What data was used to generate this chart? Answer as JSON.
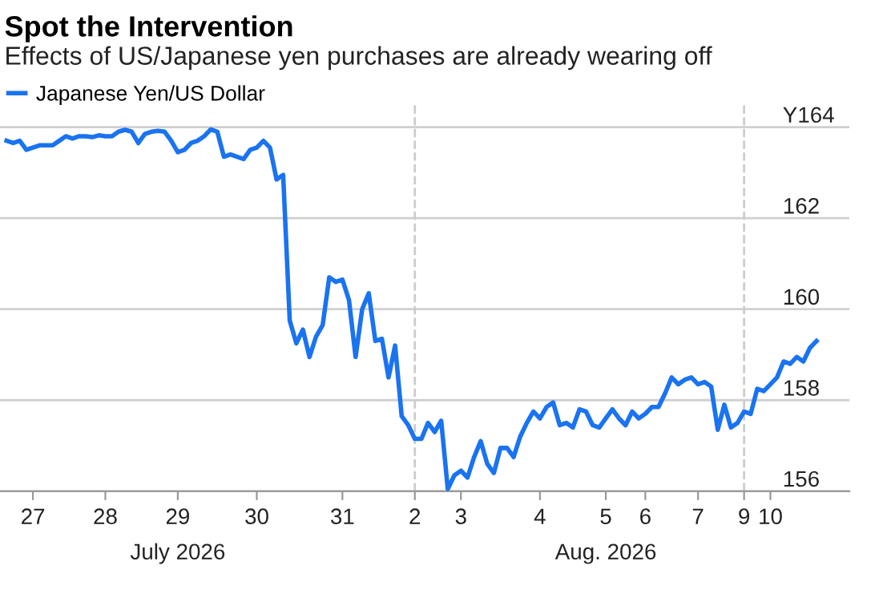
{
  "chart_data": {
    "type": "line",
    "title": "Spot the Intervention",
    "subtitle": "Effects of US/Japanese yen purchases are already wearing off",
    "categories": [
      null,
      null,
      null,
      null,
      "27",
      null,
      null,
      null,
      null,
      null,
      null,
      null,
      null,
      null,
      null,
      "28",
      null,
      null,
      null,
      null,
      null,
      null,
      null,
      null,
      null,
      null,
      "29\nJuly 2026",
      null,
      null,
      null,
      null,
      null,
      null,
      null,
      null,
      null,
      null,
      null,
      "30",
      null,
      null,
      null,
      null,
      null,
      null,
      null,
      null,
      null,
      null,
      null,
      null,
      "31",
      null,
      null,
      null,
      null,
      null,
      null,
      null,
      null,
      null,
      null,
      "2",
      null,
      null,
      null,
      null,
      null,
      null,
      "3",
      null,
      null,
      null,
      null,
      null,
      null,
      null,
      null,
      null,
      null,
      null,
      "4",
      null,
      null,
      null,
      null,
      null,
      null,
      null,
      null,
      null,
      "5\nAug. 2026",
      null,
      null,
      null,
      null,
      null,
      "6",
      null,
      null,
      null,
      null,
      null,
      null,
      null,
      "7",
      null,
      null,
      null,
      null,
      null,
      null,
      "9",
      null,
      null,
      null,
      "10",
      null,
      null,
      null,
      null,
      null,
      null,
      null
    ],
    "series": [
      {
        "name": "Japanese Yen/US Dollar",
        "color": "#1a73f0",
        "values": [
          163.7,
          163.65,
          163.7,
          163.5,
          163.55,
          163.6,
          163.6,
          163.6,
          163.7,
          163.8,
          163.75,
          163.8,
          163.8,
          163.78,
          163.82,
          163.8,
          163.8,
          163.9,
          163.94,
          163.9,
          163.65,
          163.85,
          163.9,
          163.92,
          163.9,
          163.7,
          163.45,
          163.5,
          163.65,
          163.7,
          163.8,
          163.95,
          163.9,
          163.35,
          163.4,
          163.35,
          163.3,
          163.5,
          163.55,
          163.7,
          163.55,
          162.85,
          162.95,
          159.75,
          159.25,
          159.55,
          158.95,
          159.4,
          159.65,
          160.7,
          160.6,
          160.65,
          160.2,
          158.95,
          160.0,
          160.35,
          159.3,
          159.35,
          158.5,
          159.2,
          157.65,
          157.45,
          157.15,
          157.15,
          157.5,
          157.3,
          157.55,
          156.05,
          156.35,
          156.45,
          156.3,
          156.75,
          157.1,
          156.6,
          156.4,
          156.95,
          156.95,
          156.75,
          157.2,
          157.5,
          157.75,
          157.6,
          157.85,
          157.95,
          157.45,
          157.5,
          157.4,
          157.8,
          157.75,
          157.45,
          157.4,
          157.6,
          157.8,
          157.6,
          157.45,
          157.75,
          157.6,
          157.7,
          157.85,
          157.85,
          158.15,
          158.5,
          158.35,
          158.45,
          158.5,
          158.35,
          158.4,
          158.3,
          157.35,
          157.9,
          157.4,
          157.5,
          157.75,
          157.7,
          158.25,
          158.2,
          158.35,
          158.5,
          158.85,
          158.8,
          158.95,
          158.85,
          159.15,
          159.3
        ]
      }
    ],
    "ylim": [
      156,
      164.5
    ],
    "yticks": [
      156,
      158,
      160,
      162,
      {
        "value": 164,
        "label": "Y164"
      }
    ],
    "ref_lines": [
      {
        "axis": "x",
        "value": "2",
        "color": "#cccccc",
        "line_style": "dashed"
      },
      {
        "axis": "x",
        "value": "9",
        "color": "#cccccc",
        "line_style": "dashed"
      }
    ],
    "grid": "y",
    "legend": "top left",
    "marker": "none",
    "line_style": "solid"
  }
}
